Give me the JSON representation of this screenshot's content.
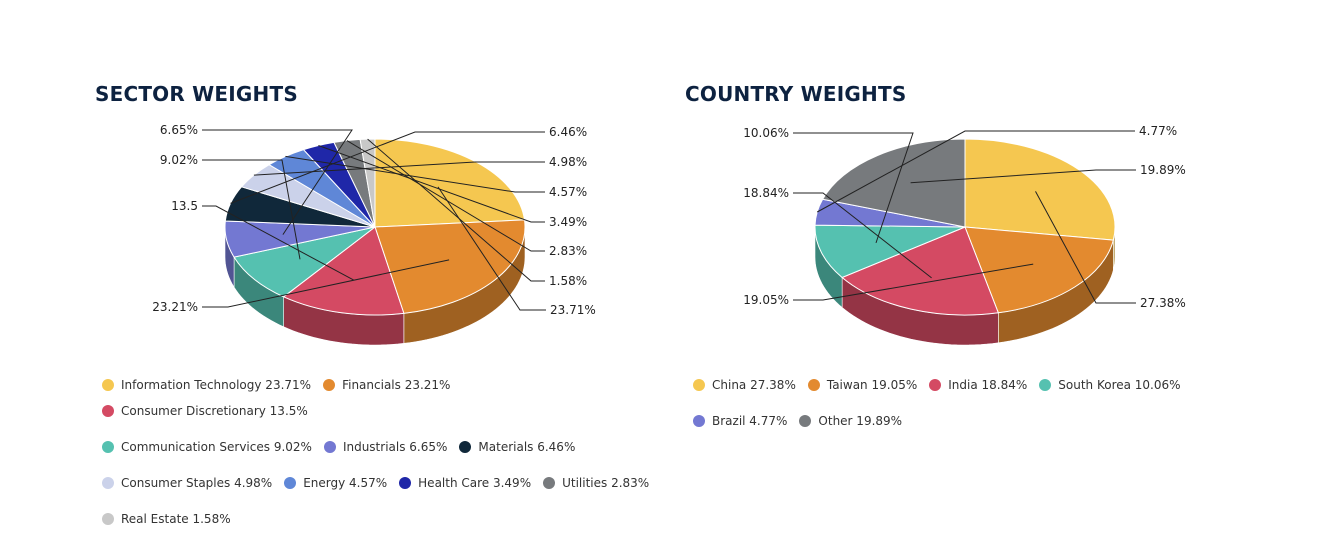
{
  "chart_data": [
    {
      "type": "pie",
      "title": "SECTOR WEIGHTS",
      "categories": [
        "Information Technology",
        "Financials",
        "Consumer Discretionary",
        "Communication Services",
        "Industrials",
        "Materials",
        "Consumer Staples",
        "Energy",
        "Health Care",
        "Utilities",
        "Real Estate"
      ],
      "values": [
        23.71,
        23.21,
        13.5,
        9.02,
        6.65,
        6.46,
        4.98,
        4.57,
        3.49,
        2.83,
        1.58
      ],
      "data_labels": [
        "23.71%",
        "23.21%",
        "13.5",
        "9.02%",
        "6.65%",
        "6.46%",
        "4.98%",
        "4.57%",
        "3.49%",
        "2.83%",
        "1.58%"
      ],
      "legend_labels": [
        "Information Technology 23.71%",
        "Financials 23.21%",
        "Consumer Discretionary 13.5%",
        "Communication Services 9.02%",
        "Industrials 6.65%",
        "Materials 6.46%",
        "Consumer Staples 4.98%",
        "Energy 4.57%",
        "Health Care 3.49%",
        "Utilities 2.83%",
        "Real Estate 1.58%"
      ],
      "colors": [
        "#f5c750",
        "#e38a2f",
        "#d44a63",
        "#55c1b0",
        "#7378d2",
        "#10283a",
        "#cbd2ea",
        "#5f87d7",
        "#1f27a8",
        "#777a7d",
        "#c8c8c8"
      ],
      "legend_rows": [
        3,
        3,
        4,
        1
      ],
      "legend_placement": "bottom"
    },
    {
      "type": "pie",
      "title": "COUNTRY WEIGHTS",
      "categories": [
        "China",
        "Taiwan",
        "India",
        "South Korea",
        "Brazil",
        "Other"
      ],
      "values": [
        27.38,
        19.05,
        18.84,
        10.06,
        4.77,
        19.89
      ],
      "data_labels": [
        "27.38%",
        "19.05%",
        "18.84%",
        "10.06%",
        "4.77%",
        "19.89%"
      ],
      "legend_labels": [
        "China 27.38%",
        "Taiwan 19.05%",
        "India 18.84%",
        "South Korea 10.06%",
        "Brazil 4.77%",
        "Other 19.89%"
      ],
      "colors": [
        "#f5c750",
        "#e38a2f",
        "#d44a63",
        "#55c1b0",
        "#7378d2",
        "#777a7d"
      ],
      "legend_rows": [
        4,
        2
      ],
      "legend_placement": "bottom"
    }
  ]
}
